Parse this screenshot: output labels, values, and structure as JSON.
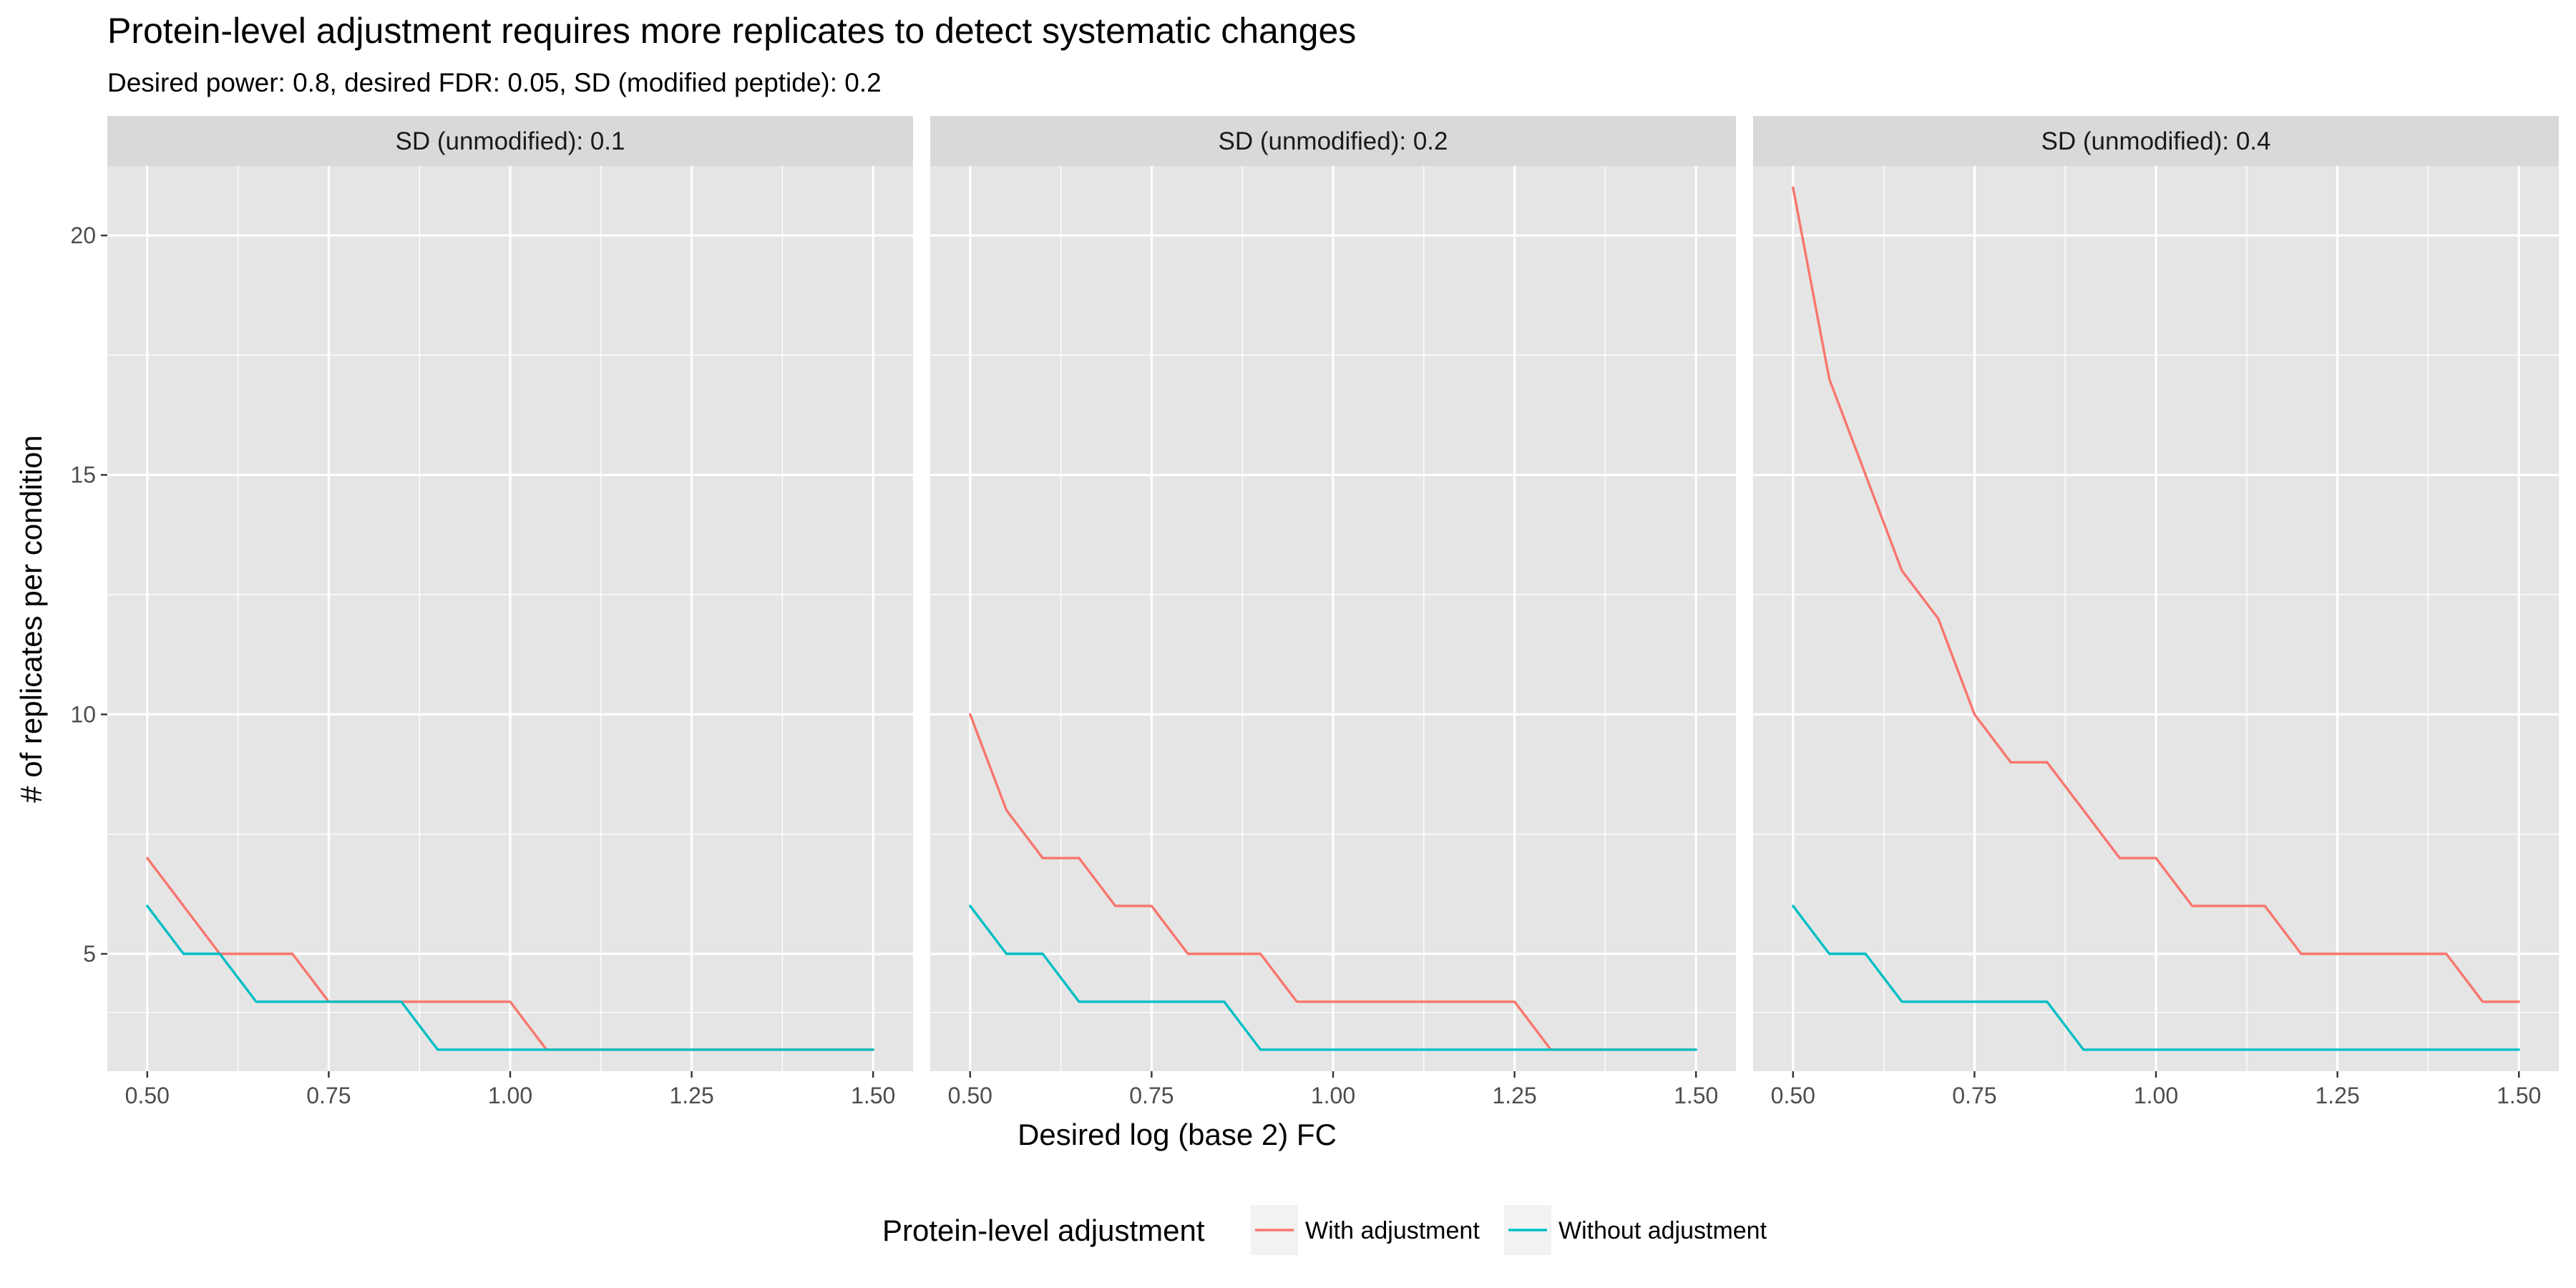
{
  "chart_data": {
    "type": "line",
    "title": "Protein-level adjustment requires more replicates to detect systematic changes",
    "subtitle": "Desired power: 0.8, desired FDR: 0.05, SD (modified peptide): 0.2",
    "xlabel": "Desired log (base 2) FC",
    "ylabel": "# of replicates per condition",
    "xlim": [
      0.445,
      1.555
    ],
    "ylim": [
      2.55,
      21.45
    ],
    "x_ticks": [
      0.5,
      0.75,
      1.0,
      1.25,
      1.5
    ],
    "x_tick_labels": [
      "0.50",
      "0.75",
      "1.00",
      "1.25",
      "1.50"
    ],
    "y_ticks": [
      5,
      10,
      15,
      20
    ],
    "y_tick_labels": [
      "5",
      "10",
      "15",
      "20"
    ],
    "grid": true,
    "legend": {
      "title": "Protein-level adjustment",
      "position": "bottom",
      "entries": [
        {
          "name": "With adjustment",
          "color": "#F8766D"
        },
        {
          "name": "Without adjustment",
          "color": "#00BFC4"
        }
      ]
    },
    "x": [
      0.5,
      0.55,
      0.6,
      0.65,
      0.7,
      0.75,
      0.8,
      0.85,
      0.9,
      0.95,
      1.0,
      1.05,
      1.1,
      1.15,
      1.2,
      1.25,
      1.3,
      1.35,
      1.4,
      1.45,
      1.5
    ],
    "panels": [
      {
        "strip": "SD (unmodified): 0.1",
        "series": [
          {
            "name": "With adjustment",
            "color": "#F8766D",
            "values": [
              7,
              6,
              5,
              5,
              5,
              4,
              4,
              4,
              4,
              4,
              4,
              3,
              3,
              3,
              3,
              3,
              3,
              3,
              3,
              3,
              3
            ]
          },
          {
            "name": "Without adjustment",
            "color": "#00BFC4",
            "values": [
              6,
              5,
              5,
              4,
              4,
              4,
              4,
              4,
              3,
              3,
              3,
              3,
              3,
              3,
              3,
              3,
              3,
              3,
              3,
              3,
              3
            ]
          }
        ]
      },
      {
        "strip": "SD (unmodified): 0.2",
        "series": [
          {
            "name": "With adjustment",
            "color": "#F8766D",
            "values": [
              10,
              8,
              7,
              7,
              6,
              6,
              5,
              5,
              5,
              4,
              4,
              4,
              4,
              4,
              4,
              4,
              3,
              3,
              3,
              3,
              3
            ]
          },
          {
            "name": "Without adjustment",
            "color": "#00BFC4",
            "values": [
              6,
              5,
              5,
              4,
              4,
              4,
              4,
              4,
              3,
              3,
              3,
              3,
              3,
              3,
              3,
              3,
              3,
              3,
              3,
              3,
              3
            ]
          }
        ]
      },
      {
        "strip": "SD (unmodified): 0.4",
        "series": [
          {
            "name": "With adjustment",
            "color": "#F8766D",
            "values": [
              21,
              17,
              15,
              13,
              12,
              10,
              9,
              9,
              8,
              7,
              7,
              6,
              6,
              6,
              5,
              5,
              5,
              5,
              5,
              4,
              4
            ]
          },
          {
            "name": "Without adjustment",
            "color": "#00BFC4",
            "values": [
              6,
              5,
              5,
              4,
              4,
              4,
              4,
              4,
              3,
              3,
              3,
              3,
              3,
              3,
              3,
              3,
              3,
              3,
              3,
              3,
              3
            ]
          }
        ]
      }
    ]
  }
}
